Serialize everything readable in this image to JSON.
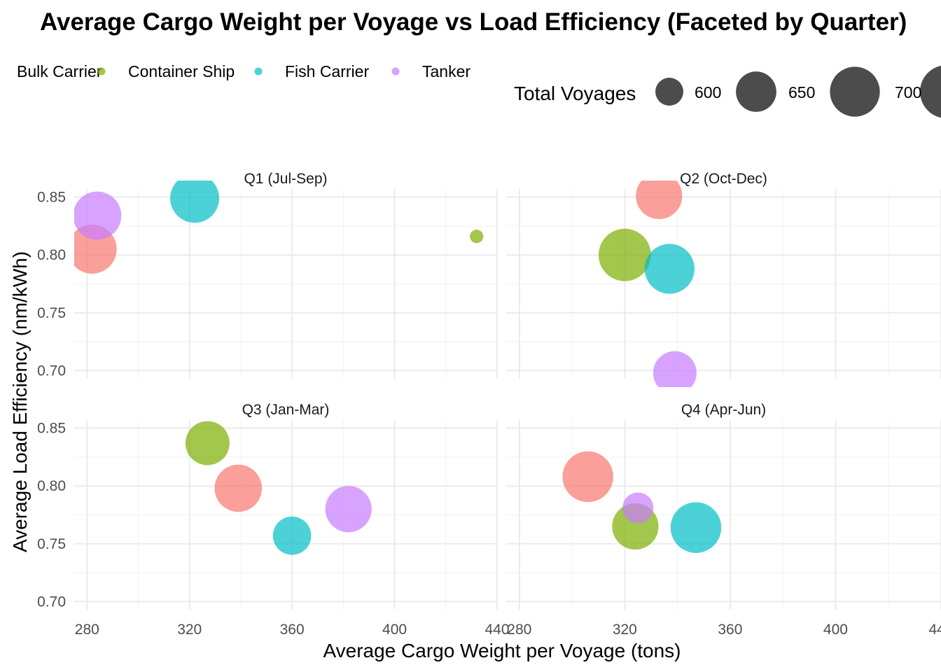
{
  "chart_data": {
    "type": "scatter",
    "title": "Average Cargo Weight per Voyage vs Load Efficiency (Faceted by Quarter)",
    "xlabel": "Average Cargo Weight per Voyage (tons)",
    "ylabel": "Average Load Efficiency (nm/kWh)",
    "xlim": [
      275,
      440
    ],
    "ylim": [
      0.693,
      0.857
    ],
    "x_ticks": [
      280,
      320,
      360,
      400,
      440
    ],
    "y_ticks": [
      0.7,
      0.75,
      0.8,
      0.85
    ],
    "x_tick_labels": [
      "280",
      "320",
      "360",
      "400",
      "440"
    ],
    "y_tick_labels": [
      "0.70",
      "0.75",
      "0.80",
      "0.85"
    ],
    "grid": true,
    "legend_position": "top",
    "color_legend": {
      "entries": [
        {
          "name": "Bulk Carrier",
          "color": "#F8766D"
        },
        {
          "name": "Container Ship",
          "color": "#7CAE00"
        },
        {
          "name": "Fish Carrier",
          "color": "#00BFC4"
        },
        {
          "name": "Tanker",
          "color": "#C77CFF"
        }
      ]
    },
    "size_legend": {
      "title": "Total Voyages",
      "values": [
        600,
        650,
        700
      ],
      "labels": [
        "600",
        "650",
        "700"
      ]
    },
    "size_range": [
      560,
      720
    ],
    "facets": [
      {
        "label": "Q1 (Jul-Sep)",
        "points": [
          {
            "series": "Bulk Carrier",
            "x": 282,
            "y": 0.805,
            "size": 695
          },
          {
            "series": "Container Ship",
            "x": 432,
            "y": 0.816,
            "size": 565
          },
          {
            "series": "Fish Carrier",
            "x": 322,
            "y": 0.849,
            "size": 695
          },
          {
            "series": "Tanker",
            "x": 284,
            "y": 0.834,
            "size": 690
          }
        ]
      },
      {
        "label": "Q2 (Oct-Dec)",
        "points": [
          {
            "series": "Bulk Carrier",
            "x": 333,
            "y": 0.851,
            "size": 680
          },
          {
            "series": "Container Ship",
            "x": 320,
            "y": 0.8,
            "size": 715
          },
          {
            "series": "Fish Carrier",
            "x": 337,
            "y": 0.788,
            "size": 700
          },
          {
            "series": "Tanker",
            "x": 339,
            "y": 0.698,
            "size": 665
          }
        ]
      },
      {
        "label": "Q3 (Jan-Mar)",
        "points": [
          {
            "series": "Bulk Carrier",
            "x": 339,
            "y": 0.798,
            "size": 685
          },
          {
            "series": "Container Ship",
            "x": 327,
            "y": 0.837,
            "size": 668
          },
          {
            "series": "Fish Carrier",
            "x": 360,
            "y": 0.757,
            "size": 640
          },
          {
            "series": "Tanker",
            "x": 382,
            "y": 0.78,
            "size": 680
          }
        ]
      },
      {
        "label": "Q4 (Apr-Jun)",
        "points": [
          {
            "series": "Bulk Carrier",
            "x": 306,
            "y": 0.808,
            "size": 705
          },
          {
            "series": "Container Ship",
            "x": 324,
            "y": 0.765,
            "size": 680
          },
          {
            "series": "Fish Carrier",
            "x": 347,
            "y": 0.764,
            "size": 705
          },
          {
            "series": "Tanker",
            "x": 325,
            "y": 0.781,
            "size": 610
          }
        ]
      }
    ]
  }
}
